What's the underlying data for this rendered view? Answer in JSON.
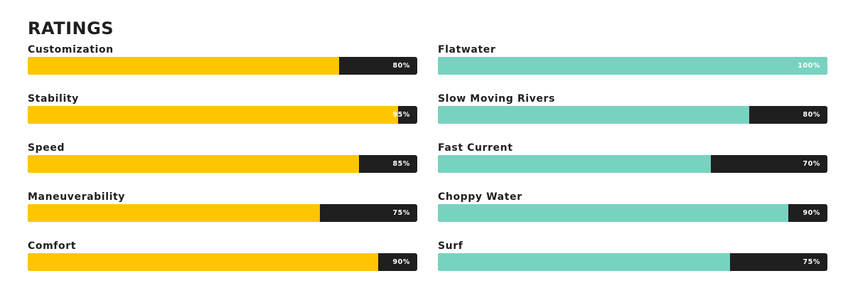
{
  "title": "RATINGS",
  "colors": {
    "left_fill": "#ffc600",
    "right_fill": "#77d3bf",
    "track": "#1f1f1f",
    "text": "#1f1f1f",
    "value_text": "#ffffff"
  },
  "left_ratings": [
    {
      "label": "Customization",
      "value": 80,
      "value_text": "80%"
    },
    {
      "label": "Stability",
      "value": 95,
      "value_text": "95%"
    },
    {
      "label": "Speed",
      "value": 85,
      "value_text": "85%"
    },
    {
      "label": "Maneuverability",
      "value": 75,
      "value_text": "75%"
    },
    {
      "label": "Comfort",
      "value": 90,
      "value_text": "90%"
    }
  ],
  "right_ratings": [
    {
      "label": "Flatwater",
      "value": 100,
      "value_text": "100%"
    },
    {
      "label": "Slow Moving Rivers",
      "value": 80,
      "value_text": "80%"
    },
    {
      "label": "Fast Current",
      "value": 70,
      "value_text": "70%"
    },
    {
      "label": "Choppy Water",
      "value": 90,
      "value_text": "90%"
    },
    {
      "label": "Surf",
      "value": 75,
      "value_text": "75%"
    }
  ]
}
